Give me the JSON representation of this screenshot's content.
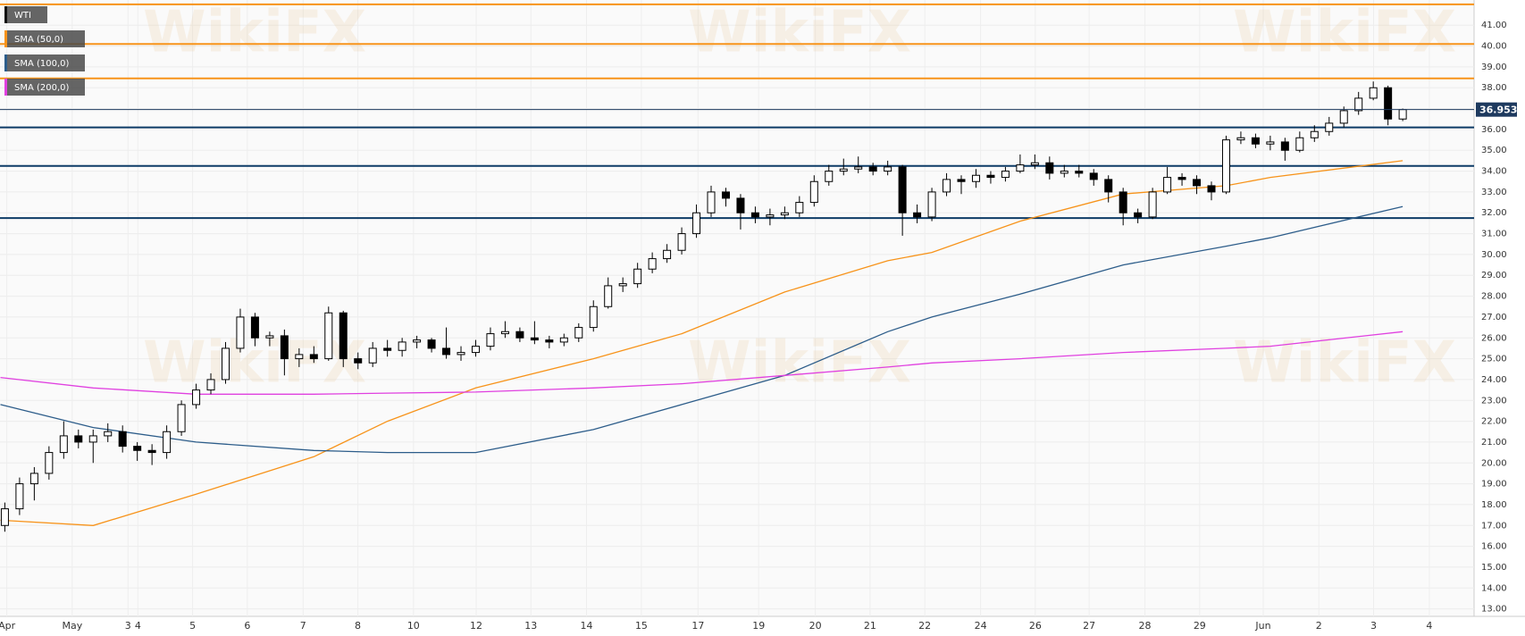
{
  "chart_data": {
    "type": "candlestick",
    "name": "WTI",
    "watermark": "WikiFX",
    "up_color": "#ffffff",
    "down_color": "#000000",
    "edge_color": "#000000",
    "open": [
      17.0,
      17.8,
      19.0,
      19.5,
      20.5,
      21.3,
      21.0,
      21.3,
      21.5,
      20.8,
      20.6,
      20.5,
      21.5,
      22.8,
      23.5,
      24.0,
      25.5,
      27.0,
      26.0,
      26.1,
      25.0,
      25.2,
      25.0,
      27.2,
      25.0,
      24.8,
      25.5,
      25.4,
      25.8,
      25.9,
      25.5,
      25.2,
      25.3,
      25.6,
      26.2,
      26.3,
      26.0,
      25.9,
      25.8,
      26.0,
      26.5,
      27.5,
      28.5,
      28.6,
      29.3,
      29.8,
      30.2,
      31.0,
      32.0,
      33.0,
      32.7,
      32.0,
      31.8,
      31.9,
      32.0,
      32.5,
      33.5,
      34.0,
      34.1,
      34.2,
      34.0,
      34.2,
      32.0,
      31.8,
      33.0,
      33.6,
      33.5,
      33.8,
      33.7,
      34.0,
      34.3,
      34.4,
      33.9,
      34.0,
      33.9,
      33.6,
      33.0,
      32.0,
      31.8,
      33.0,
      33.7,
      33.6,
      33.3,
      33.0,
      35.5,
      35.6,
      35.3,
      35.4,
      35.0,
      35.6,
      35.9,
      36.3,
      36.9,
      37.5,
      38.0,
      36.5
    ],
    "high": [
      18.1,
      19.3,
      19.8,
      20.8,
      22.0,
      21.6,
      21.6,
      21.9,
      21.8,
      21.0,
      20.9,
      21.8,
      23.0,
      23.8,
      24.3,
      25.8,
      27.4,
      27.2,
      26.3,
      26.4,
      25.5,
      25.6,
      27.5,
      27.3,
      25.3,
      25.8,
      25.9,
      26.0,
      26.1,
      26.0,
      26.5,
      25.6,
      25.9,
      26.5,
      26.8,
      26.5,
      26.8,
      26.1,
      26.2,
      26.7,
      27.8,
      28.9,
      28.9,
      29.6,
      30.1,
      30.5,
      31.3,
      32.4,
      33.3,
      33.2,
      32.9,
      32.3,
      32.2,
      32.3,
      32.8,
      33.8,
      34.3,
      34.6,
      34.7,
      34.4,
      34.5,
      34.3,
      32.4,
      33.2,
      33.9,
      33.8,
      34.1,
      34.0,
      34.2,
      34.8,
      34.8,
      34.7,
      34.3,
      34.3,
      34.1,
      33.8,
      33.2,
      32.2,
      33.2,
      34.2,
      33.9,
      33.8,
      33.5,
      35.7,
      35.9,
      35.8,
      35.7,
      35.6,
      35.9,
      36.2,
      36.6,
      37.1,
      37.8,
      38.3,
      38.1,
      37.0
    ],
    "low": [
      16.7,
      17.5,
      18.2,
      19.2,
      20.2,
      20.7,
      20.0,
      21.0,
      20.5,
      20.1,
      19.9,
      20.2,
      21.3,
      22.6,
      23.3,
      23.8,
      25.3,
      25.6,
      25.6,
      24.2,
      24.6,
      24.8,
      24.9,
      24.6,
      24.5,
      24.6,
      25.1,
      25.1,
      25.5,
      25.3,
      25.0,
      24.9,
      25.1,
      25.4,
      26.0,
      25.8,
      25.7,
      25.5,
      25.6,
      25.8,
      26.3,
      27.4,
      28.2,
      28.4,
      29.1,
      29.6,
      30.0,
      30.8,
      31.8,
      32.3,
      31.2,
      31.5,
      31.4,
      31.7,
      31.8,
      32.3,
      33.3,
      33.8,
      33.9,
      33.8,
      33.8,
      30.9,
      31.5,
      31.6,
      32.8,
      32.9,
      33.2,
      33.4,
      33.5,
      33.9,
      34.1,
      33.6,
      33.7,
      33.7,
      33.3,
      32.5,
      31.4,
      31.5,
      31.7,
      32.9,
      33.3,
      32.9,
      32.6,
      32.9,
      35.3,
      35.1,
      35.0,
      34.5,
      34.9,
      35.4,
      35.7,
      36.1,
      36.7,
      37.4,
      36.2,
      36.4
    ],
    "close": [
      17.8,
      19.0,
      19.5,
      20.5,
      21.3,
      21.0,
      21.3,
      21.5,
      20.8,
      20.6,
      20.5,
      21.5,
      22.8,
      23.5,
      24.0,
      25.5,
      27.0,
      26.0,
      26.1,
      25.0,
      25.2,
      25.0,
      27.2,
      25.0,
      24.8,
      25.5,
      25.4,
      25.8,
      25.9,
      25.5,
      25.2,
      25.3,
      25.6,
      26.2,
      26.3,
      26.0,
      25.9,
      25.8,
      26.0,
      26.5,
      27.5,
      28.5,
      28.6,
      29.3,
      29.8,
      30.2,
      31.0,
      32.0,
      33.0,
      32.7,
      32.0,
      31.8,
      31.9,
      32.0,
      32.5,
      33.5,
      34.0,
      34.1,
      34.2,
      34.0,
      34.2,
      32.0,
      31.8,
      33.0,
      33.6,
      33.5,
      33.8,
      33.7,
      34.0,
      34.3,
      34.4,
      33.9,
      34.0,
      33.9,
      33.6,
      33.0,
      32.0,
      31.8,
      33.0,
      33.7,
      33.6,
      33.3,
      33.0,
      35.5,
      35.6,
      35.3,
      35.4,
      35.0,
      35.6,
      35.9,
      36.3,
      36.9,
      37.5,
      38.0,
      36.5,
      36.953
    ],
    "price_color": "#1e3a5f",
    "lines": [
      {
        "name": "SMA (50,0)",
        "color": "#f7931a",
        "x": [
          -0.3,
          6,
          13,
          21,
          26,
          32,
          40,
          46,
          53,
          60,
          63,
          69,
          76,
          83,
          86,
          95
        ],
        "values": [
          17.25,
          17.0,
          18.5,
          20.3,
          22.0,
          23.6,
          25.0,
          26.2,
          28.2,
          29.7,
          30.1,
          31.6,
          32.9,
          33.3,
          33.7,
          34.5
        ]
      },
      {
        "name": "SMA (100,0)",
        "color": "#2d5d8a",
        "x": [
          -0.3,
          6,
          13,
          21,
          26,
          32,
          40,
          46,
          53,
          60,
          63,
          69,
          76,
          83,
          86,
          95
        ],
        "values": [
          22.8,
          21.7,
          21.0,
          20.6,
          20.5,
          20.5,
          21.6,
          22.8,
          24.2,
          26.3,
          27.0,
          28.1,
          29.5,
          30.4,
          30.8,
          32.3
        ]
      },
      {
        "name": "SMA (200,0)",
        "color": "#e040e0",
        "x": [
          -0.3,
          6,
          13,
          21,
          26,
          32,
          40,
          46,
          53,
          60,
          63,
          69,
          76,
          83,
          86,
          95
        ],
        "values": [
          24.1,
          23.6,
          23.3,
          23.3,
          23.35,
          23.4,
          23.6,
          23.8,
          24.2,
          24.6,
          24.8,
          25.0,
          25.3,
          25.5,
          25.6,
          26.3
        ]
      }
    ],
    "levels": [
      {
        "color": "#f7931a",
        "values": [
          42.0,
          40.1,
          38.45
        ]
      },
      {
        "color": "#0d3b66",
        "values": [
          36.1,
          34.25,
          31.75
        ]
      }
    ],
    "xlim": [
      -0.33,
      99.85
    ],
    "ylim": [
      12.64,
      42.21
    ],
    "grid": true,
    "yticks": [
      {
        "value": 13,
        "label": "13.00"
      },
      {
        "value": 14,
        "label": "14.00"
      },
      {
        "value": 15,
        "label": "15.00"
      },
      {
        "value": 16,
        "label": "16.00"
      },
      {
        "value": 17,
        "label": "17.00"
      },
      {
        "value": 18,
        "label": "18.00"
      },
      {
        "value": 19,
        "label": "19.00"
      },
      {
        "value": 20,
        "label": "20.00"
      },
      {
        "value": 21,
        "label": "21.00"
      },
      {
        "value": 22,
        "label": "22.00"
      },
      {
        "value": 23,
        "label": "23.00"
      },
      {
        "value": 24,
        "label": "24.00"
      },
      {
        "value": 25,
        "label": "25.00"
      },
      {
        "value": 26,
        "label": "26.00"
      },
      {
        "value": 27,
        "label": "27.00"
      },
      {
        "value": 28,
        "label": "28.00"
      },
      {
        "value": 29,
        "label": "29.00"
      },
      {
        "value": 30,
        "label": "30.00"
      },
      {
        "value": 31,
        "label": "31.00"
      },
      {
        "value": 32,
        "label": "32.00"
      },
      {
        "value": 33,
        "label": "33.00"
      },
      {
        "value": 34,
        "label": "34.00"
      },
      {
        "value": 35,
        "label": "35.00"
      },
      {
        "value": 36,
        "label": "36.00"
      },
      {
        "value": 37,
        "label": "37.00"
      },
      {
        "value": 38,
        "label": "38.00"
      },
      {
        "value": 39,
        "label": "39.00"
      },
      {
        "value": 40,
        "label": "40.00"
      },
      {
        "value": 41,
        "label": "41.00"
      }
    ],
    "xticks": [
      {
        "value": 0.13,
        "label": "Apr"
      },
      {
        "value": 4.58,
        "label": "May"
      },
      {
        "value": 8.37,
        "label": "3"
      },
      {
        "value": 9.04,
        "label": "4"
      },
      {
        "value": 12.76,
        "label": "5"
      },
      {
        "value": 16.48,
        "label": "6"
      },
      {
        "value": 20.27,
        "label": "7"
      },
      {
        "value": 23.99,
        "label": "8"
      },
      {
        "value": 27.77,
        "label": "10"
      },
      {
        "value": 32.03,
        "label": "12"
      },
      {
        "value": 35.75,
        "label": "13"
      },
      {
        "value": 39.53,
        "label": "14"
      },
      {
        "value": 43.26,
        "label": "15"
      },
      {
        "value": 47.11,
        "label": "17"
      },
      {
        "value": 51.23,
        "label": "19"
      },
      {
        "value": 55.08,
        "label": "20"
      },
      {
        "value": 58.8,
        "label": "21"
      },
      {
        "value": 62.52,
        "label": "22"
      },
      {
        "value": 66.31,
        "label": "24"
      },
      {
        "value": 70.03,
        "label": "26"
      },
      {
        "value": 73.69,
        "label": "27"
      },
      {
        "value": 77.48,
        "label": "28"
      },
      {
        "value": 81.2,
        "label": "29"
      },
      {
        "value": 85.52,
        "label": "Jun"
      },
      {
        "value": 89.3,
        "label": "2"
      },
      {
        "value": 93.02,
        "label": "3"
      },
      {
        "value": 96.81,
        "label": "4"
      }
    ]
  }
}
